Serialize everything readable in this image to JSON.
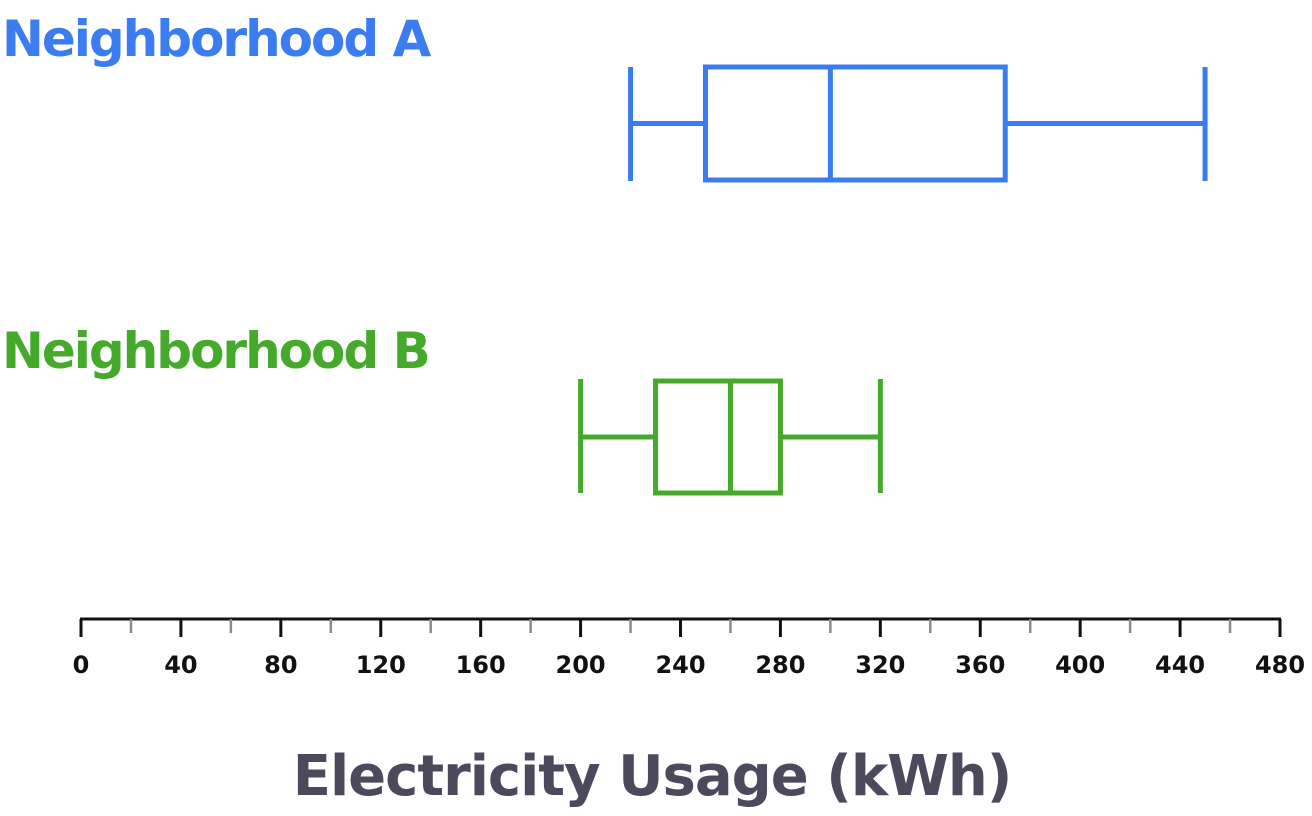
{
  "chart_data": {
    "type": "boxplot",
    "title": "",
    "xlabel": "Electricity Usage (kWh)",
    "ylabel": "",
    "xlim": [
      0,
      480
    ],
    "major_ticks": [
      0,
      40,
      80,
      120,
      160,
      200,
      240,
      280,
      320,
      360,
      400,
      440,
      480
    ],
    "tick_labels": [
      "0",
      "40",
      "80",
      "120",
      "160",
      "200",
      "240",
      "280",
      "320",
      "360",
      "400",
      "440",
      "480"
    ],
    "minor_tick_step": 20,
    "grid": false,
    "series": [
      {
        "name": "Neighborhood A",
        "color": "#3b7cf0",
        "min": 220,
        "q1": 250,
        "median": 300,
        "q3": 370,
        "max": 450
      },
      {
        "name": "Neighborhood B",
        "color": "#45a92b",
        "min": 200,
        "q1": 230,
        "median": 260,
        "q3": 280,
        "max": 320
      }
    ]
  }
}
